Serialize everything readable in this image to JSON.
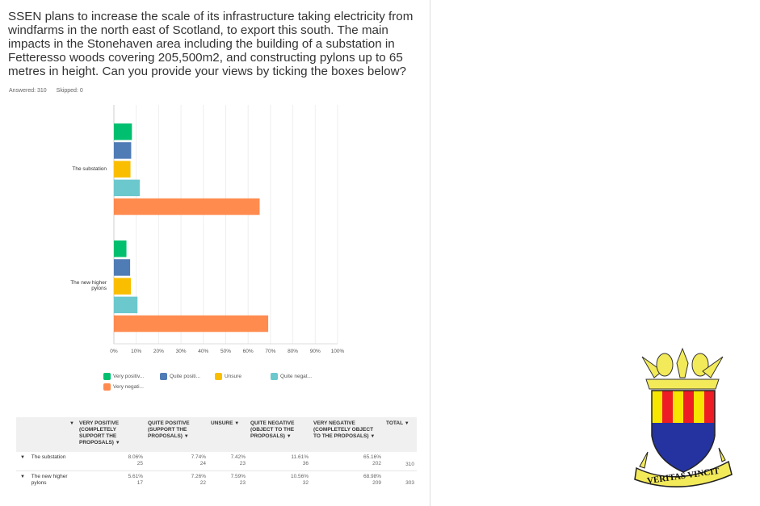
{
  "question": "SSEN plans to increase the scale of its infrastructure taking electricity from windfarms in the north east of Scotland, to export this south. The main impacts in the Stonehaven area including the building of a substation in Fetteresso woods covering 205,500m2, and constructing pylons up to 65 metres in height. Can you provide your views by ticking the boxes below?",
  "answered": "Answered: 310",
  "skipped": "Skipped: 0",
  "chart_data": {
    "type": "bar",
    "orientation": "horizontal",
    "categories": [
      "The substation",
      "The new higher pylons"
    ],
    "xlim": [
      0,
      100
    ],
    "ticks": [
      "0%",
      "10%",
      "20%",
      "30%",
      "40%",
      "50%",
      "60%",
      "70%",
      "80%",
      "90%",
      "100%"
    ],
    "grid": true,
    "legend_placement": "bottom",
    "series": [
      {
        "name": "Very positiv...",
        "color": "#00bf6f",
        "values": [
          8.06,
          5.61
        ]
      },
      {
        "name": "Quite positi...",
        "color": "#507cb6",
        "values": [
          7.74,
          7.26
        ]
      },
      {
        "name": "Unsure",
        "color": "#f9be00",
        "values": [
          7.42,
          7.59
        ]
      },
      {
        "name": "Quite negat...",
        "color": "#6bc8cd",
        "values": [
          11.61,
          10.56
        ]
      },
      {
        "name": "Very negati...",
        "color": "#ff8b4f",
        "values": [
          65.16,
          68.98
        ]
      }
    ]
  },
  "table": {
    "headers": [
      "VERY POSITIVE (COMPLETELY SUPPORT THE PROPOSALS)",
      "QUITE POSITIVE (SUPPORT THE PROPOSALS)",
      "UNSURE",
      "QUITE NEGATIVE (OBJECT TO THE PROPOSALS)",
      "VERY NEGATIVE (COMPLETELY OBJECT TO THE PROPOSALS)",
      "TOTAL"
    ],
    "rows": [
      {
        "label": "The substation",
        "cells": [
          [
            "8.06%",
            "25"
          ],
          [
            "7.74%",
            "24"
          ],
          [
            "7.42%",
            "23"
          ],
          [
            "11.61%",
            "36"
          ],
          [
            "65.16%",
            "202"
          ]
        ],
        "total": "310"
      },
      {
        "label": "The new higher pylons",
        "cells": [
          [
            "5.61%",
            "17"
          ],
          [
            "7.26%",
            "22"
          ],
          [
            "7.59%",
            "23"
          ],
          [
            "10.56%",
            "32"
          ],
          [
            "68.98%",
            "209"
          ]
        ],
        "total": "303"
      }
    ]
  },
  "crest": {
    "motto": "VERITAS VINCIT"
  }
}
